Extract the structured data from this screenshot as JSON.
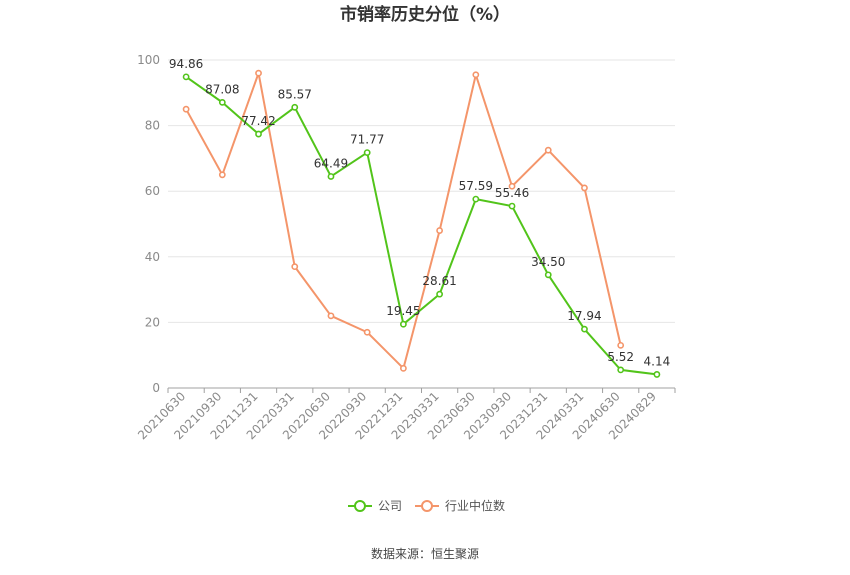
{
  "chart_data": {
    "type": "line",
    "title": "市销率历史分位（%）",
    "categories": [
      "20210630",
      "20210930",
      "20211231",
      "20220331",
      "20220630",
      "20220930",
      "20221231",
      "20230331",
      "20230630",
      "20230930",
      "20231231",
      "20240331",
      "20240630",
      "20240829"
    ],
    "ylim": [
      0,
      100
    ],
    "yticks": [
      0,
      20,
      40,
      60,
      80,
      100
    ],
    "grid": true,
    "legend_position": "bottom",
    "series": [
      {
        "name": "公司",
        "color": "#52c41a",
        "values": [
          94.86,
          87.08,
          77.42,
          85.57,
          64.49,
          71.77,
          19.45,
          28.61,
          57.59,
          55.46,
          34.5,
          17.94,
          5.52,
          4.14
        ],
        "labels": [
          "94.86",
          "87.08",
          "77.42",
          "85.57",
          "64.49",
          "71.77",
          "19.45",
          "28.61",
          "57.59",
          "55.46",
          "34.50",
          "17.94",
          "5.52",
          "4.14"
        ]
      },
      {
        "name": "行业中位数",
        "color": "#f4956a",
        "values": [
          85,
          65,
          96,
          37,
          22,
          17,
          6,
          48,
          95.5,
          61.5,
          72.5,
          61,
          13,
          null
        ]
      }
    ]
  },
  "source_text": "数据来源：恒生聚源"
}
